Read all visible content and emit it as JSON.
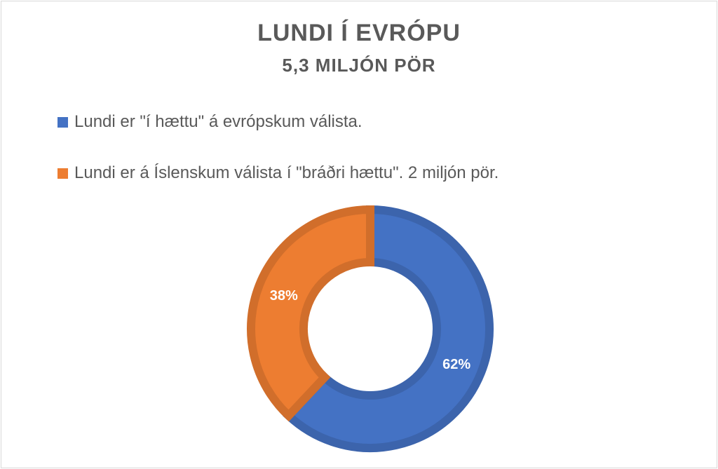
{
  "chart_data": {
    "type": "pie",
    "variant": "donut",
    "title": "LUNDI Í EVRÓPU",
    "subtitle": "5,3 MILJÓN PÖR",
    "legend_position": "top-left",
    "slices": [
      {
        "label": "Lundi er \"í hættu\" á evrópskum válista.",
        "value": 62,
        "data_label": "62%",
        "color": "#4472C4"
      },
      {
        "label": "Lundi er á Íslenskum válista í \"bráðri hættu\". 2 miljón pör.",
        "value": 38,
        "data_label": "38%",
        "color": "#ED7D31"
      }
    ]
  }
}
